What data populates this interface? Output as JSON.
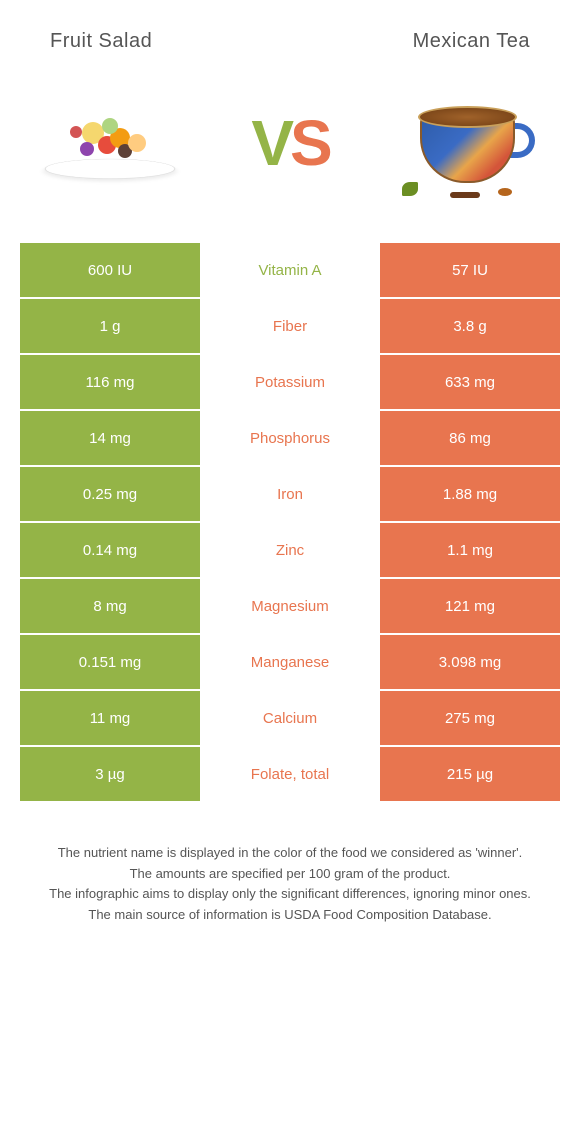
{
  "colors": {
    "left": "#94b447",
    "right": "#e8754f",
    "vs_v": "#94b447",
    "vs_s": "#e8754f"
  },
  "header": {
    "left": "Fruit Salad",
    "right": "Mexican Tea"
  },
  "vs": {
    "v": "V",
    "s": "S"
  },
  "rows": [
    {
      "left": "600 IU",
      "label": "Vitamin A",
      "right": "57 IU",
      "winner": "left"
    },
    {
      "left": "1 g",
      "label": "Fiber",
      "right": "3.8 g",
      "winner": "right"
    },
    {
      "left": "116 mg",
      "label": "Potassium",
      "right": "633 mg",
      "winner": "right"
    },
    {
      "left": "14 mg",
      "label": "Phosphorus",
      "right": "86 mg",
      "winner": "right"
    },
    {
      "left": "0.25 mg",
      "label": "Iron",
      "right": "1.88 mg",
      "winner": "right"
    },
    {
      "left": "0.14 mg",
      "label": "Zinc",
      "right": "1.1 mg",
      "winner": "right"
    },
    {
      "left": "8 mg",
      "label": "Magnesium",
      "right": "121 mg",
      "winner": "right"
    },
    {
      "left": "0.151 mg",
      "label": "Manganese",
      "right": "3.098 mg",
      "winner": "right"
    },
    {
      "left": "11 mg",
      "label": "Calcium",
      "right": "275 mg",
      "winner": "right"
    },
    {
      "left": "3 µg",
      "label": "Folate, total",
      "right": "215 µg",
      "winner": "right"
    }
  ],
  "footnotes": [
    "The nutrient name is displayed in the color of the food we considered as 'winner'.",
    "The amounts are specified per 100 gram of the product.",
    "The infographic aims to display only the significant differences, ignoring minor ones.",
    "The main source of information is USDA Food Composition Database."
  ]
}
